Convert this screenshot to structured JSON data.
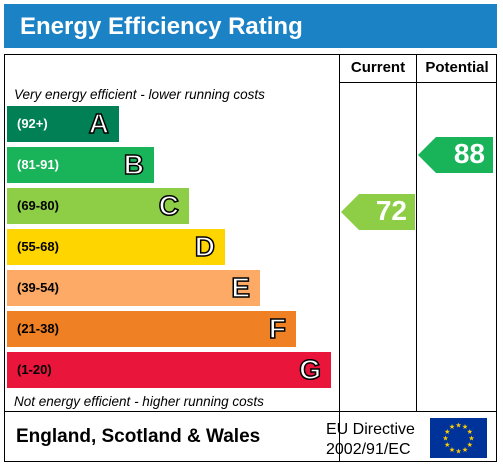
{
  "title": "Energy Efficiency Rating",
  "columns": {
    "current": "Current",
    "potential": "Potential"
  },
  "top_caption": "Very energy efficient - lower running costs",
  "bottom_caption": "Not energy efficient - higher running costs",
  "bands": [
    {
      "range": "(92+)",
      "letter": "A",
      "color": "#008054",
      "range_color": "#ffffff"
    },
    {
      "range": "(81-91)",
      "letter": "B",
      "color": "#19b459",
      "range_color": "#ffffff"
    },
    {
      "range": "(69-80)",
      "letter": "C",
      "color": "#8dce46",
      "range_color": "#000000"
    },
    {
      "range": "(55-68)",
      "letter": "D",
      "color": "#ffd500",
      "range_color": "#000000"
    },
    {
      "range": "(39-54)",
      "letter": "E",
      "color": "#fcaa65",
      "range_color": "#000000"
    },
    {
      "range": "(21-38)",
      "letter": "F",
      "color": "#ef8023",
      "range_color": "#000000"
    },
    {
      "range": "(1-20)",
      "letter": "G",
      "color": "#e9153b",
      "range_color": "#000000"
    }
  ],
  "current": {
    "value": "72",
    "color": "#8dce46"
  },
  "potential": {
    "value": "88",
    "color": "#19b459"
  },
  "footer": {
    "country": "England, Scotland & Wales",
    "directive_line1": "EU Directive",
    "directive_line2": "2002/91/EC"
  },
  "colors": {
    "title_bg": "#1b82c5",
    "flag_bg": "#003399",
    "flag_star": "#ffcc00"
  }
}
